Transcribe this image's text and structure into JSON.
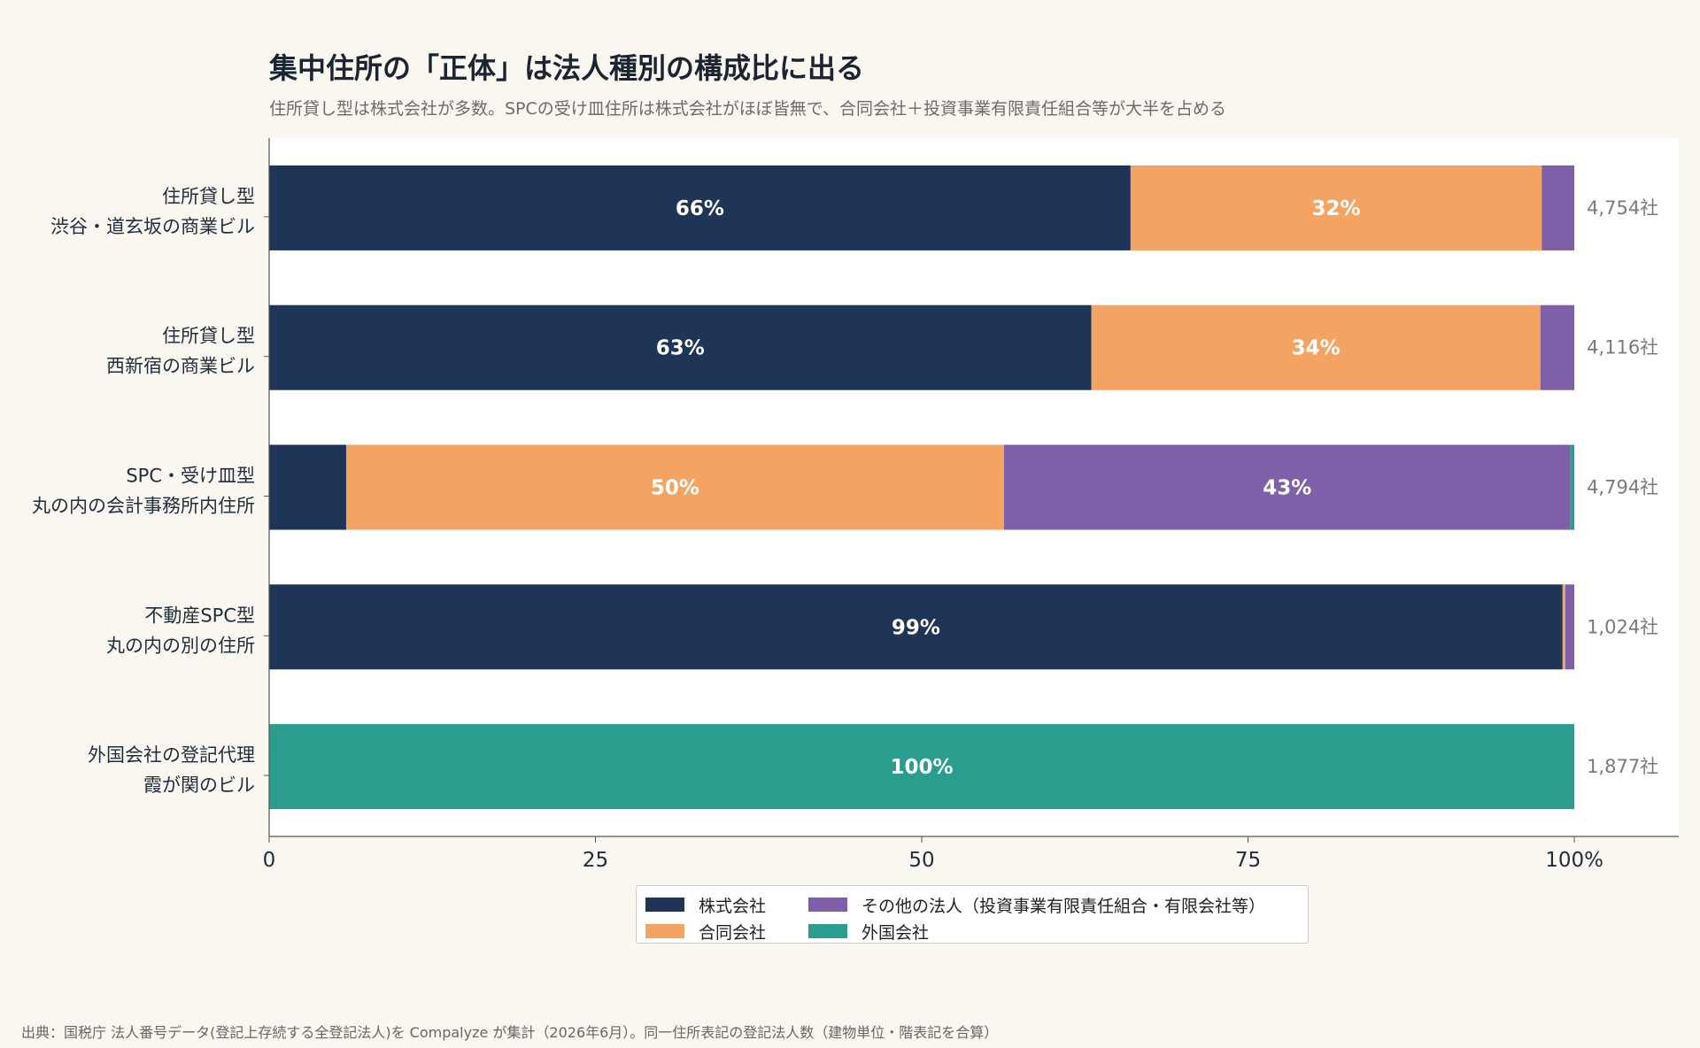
{
  "chart_data": {
    "type": "bar",
    "orientation": "horizontal",
    "stacked": true,
    "title": "集中住所の「正体」は法人種別の構成比に出る",
    "subtitle": "住所貸し型は株式会社が多数。SPCの受け皿住所は株式会社がほぼ皆無で、合同会社＋投資事業有限責任組合等が大半を占める",
    "categories": [
      [
        "住所貸し型",
        "渋谷・道玄坂の商業ビル"
      ],
      [
        "住所貸し型",
        "西新宿の商業ビル"
      ],
      [
        "SPC・受け皿型",
        "丸の内の会計事務所内住所"
      ],
      [
        "不動産SPC型",
        "丸の内の別の住所"
      ],
      [
        "外国会社の登記代理",
        "霞が関のビル"
      ]
    ],
    "totals": [
      "4,754社",
      "4,116社",
      "4,794社",
      "1,024社",
      "1,877社"
    ],
    "series": [
      {
        "name": "株式会社",
        "color": "#1e3557",
        "values": [
          66.0,
          63.0,
          5.9,
          99.1,
          0.0
        ],
        "labels": [
          "66%",
          "63%",
          "",
          "99%",
          ""
        ]
      },
      {
        "name": "合同会社",
        "color": "#f4a362",
        "values": [
          31.5,
          34.4,
          50.4,
          0.2,
          0.0
        ],
        "labels": [
          "32%",
          "34%",
          "50%",
          "",
          ""
        ]
      },
      {
        "name": "その他の法人（投資事業有限責任組合・有限会社等）",
        "color": "#7e5fa8",
        "values": [
          2.5,
          2.6,
          43.4,
          0.7,
          0.0
        ],
        "labels": [
          "",
          "",
          "43%",
          "",
          ""
        ]
      },
      {
        "name": "外国会社",
        "color": "#2a9d8f",
        "values": [
          0.0,
          0.0,
          0.3,
          0.0,
          100.0
        ],
        "labels": [
          "",
          "",
          "",
          "",
          "100%"
        ]
      }
    ],
    "xlim": [
      0,
      108
    ],
    "xticks": [
      0,
      25,
      50,
      75,
      100
    ],
    "xtick_labels": [
      "0",
      "25",
      "50",
      "75",
      "100%"
    ],
    "grid": false,
    "legend_placement": "bottom-center",
    "source": "出典：国税庁 法人番号データ(登記上存続する全登記法人)を Compalyze が集計（2026年6月）。同一住所表記の登記法人数（建物単位・階表記を合算）"
  }
}
